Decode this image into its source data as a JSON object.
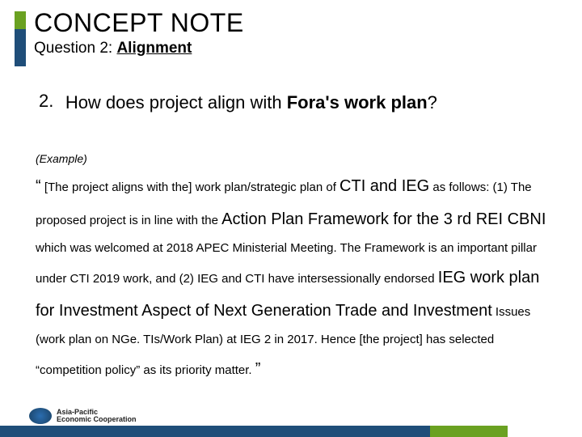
{
  "title": {
    "main": "CONCEPT NOTE",
    "subtitle_prefix": "Question 2: ",
    "subtitle_underlined": "Alignment"
  },
  "question": {
    "number": "2.",
    "prefix": "How does project align with ",
    "bold": "Fora's work plan",
    "suffix": "?"
  },
  "example_label": "(Example)",
  "body": {
    "open_quote": "“",
    "t1": " [The project aligns with the] work plan/strategic plan of ",
    "b1": "CTI and IEG",
    "t2": " as follows: (1) The proposed project is in line with the ",
    "b2": "Action Plan Framework for the 3 rd REI CBNI",
    "t3": " which was welcomed at 2018 APEC Ministerial Meeting. The Framework is an important pillar under CTI 2019 work, and (2) IEG and CTI have intersessionally endorsed ",
    "b3": "IEG work plan for Investment Aspect of Next Generation Trade and Investment",
    "t4": " Issues (work plan on NGe. TIs/Work Plan) at IEG 2 in 2017. Hence [the project] has selected “competition policy” as its priority matter. ",
    "close_quote": "”"
  },
  "footer": {
    "org_line1": "Asia-Pacific",
    "org_line2": "Economic Cooperation"
  },
  "colors": {
    "green": "#6aa121",
    "blue": "#1f4e79",
    "text": "#000000",
    "bg": "#ffffff"
  }
}
